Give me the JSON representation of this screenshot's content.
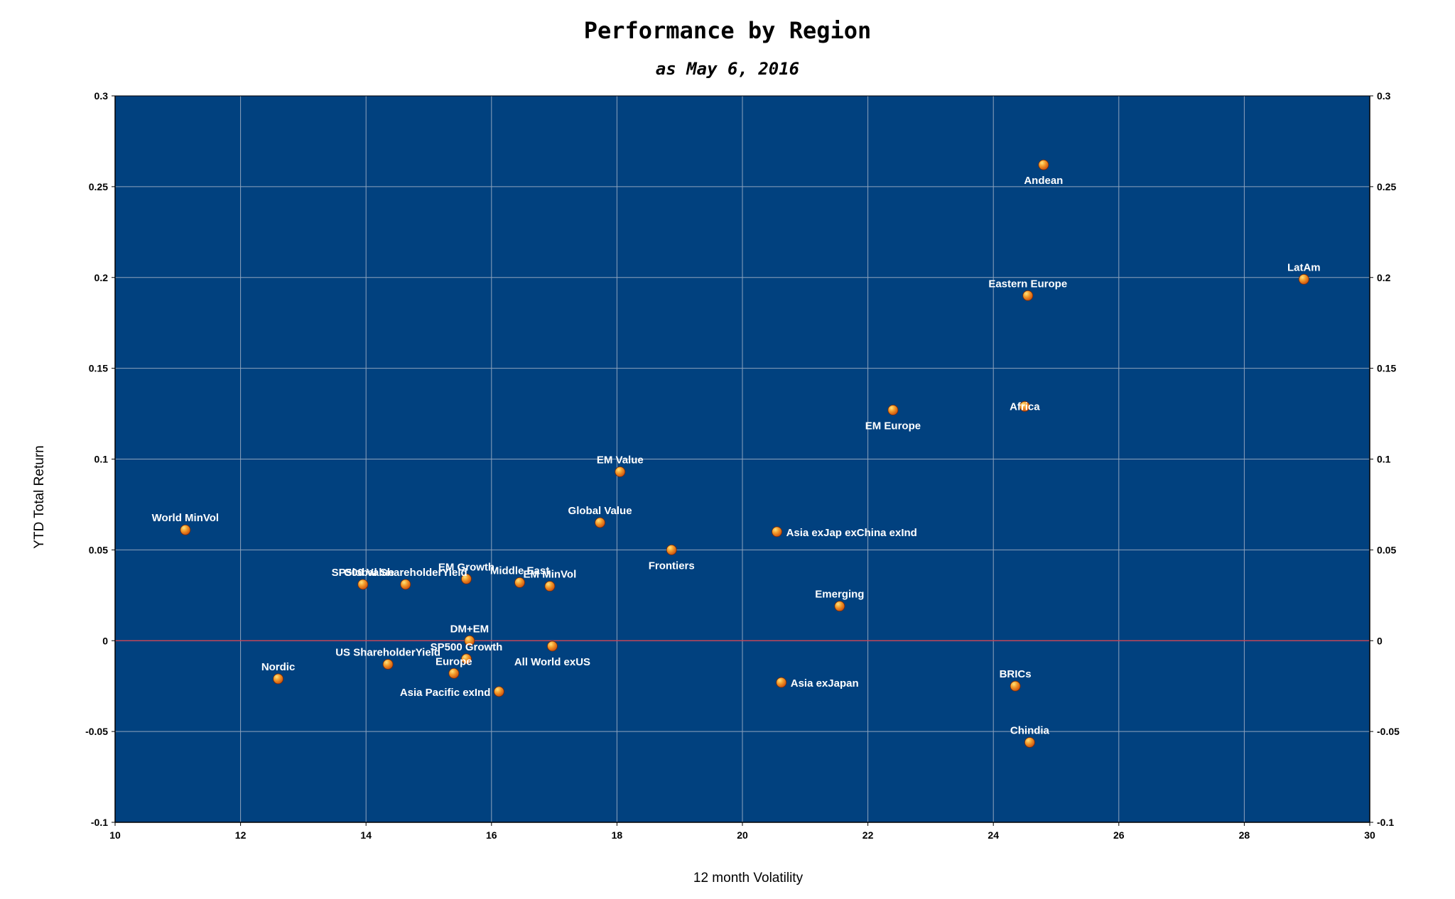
{
  "chart_data": {
    "type": "scatter",
    "title": "Performance by Region",
    "subtitle": "as May 6, 2016",
    "xlabel": "12 month Volatility",
    "ylabel": "YTD Total Return",
    "xlim": [
      10,
      30
    ],
    "ylim": [
      -0.1,
      0.3
    ],
    "xticks": [
      10,
      12,
      14,
      16,
      18,
      20,
      22,
      24,
      26,
      28,
      30
    ],
    "yticks": [
      -0.1,
      -0.05,
      0,
      0.05,
      0.1,
      0.15,
      0.2,
      0.25,
      0.3
    ],
    "ytick_labels": [
      "-0.1",
      "-0.05",
      "0",
      "0.05",
      "0.1",
      "0.15",
      "0.2",
      "0.25",
      "0.3"
    ],
    "grid": true,
    "secondary_y_axis": true,
    "colors": {
      "plot_bg": "#01417f",
      "grid": "#8fa3bd",
      "zero_line": "#c0465a",
      "marker": "#f07c1c",
      "marker_highlight": "#ffe27a",
      "label": "#ffffff"
    },
    "points": [
      {
        "label": "Andean",
        "x": 24.8,
        "y": 0.262,
        "pos": "below"
      },
      {
        "label": "LatAm",
        "x": 28.95,
        "y": 0.199,
        "pos": "above"
      },
      {
        "label": "Eastern Europe",
        "x": 24.55,
        "y": 0.19,
        "pos": "above"
      },
      {
        "label": "Africa",
        "x": 24.5,
        "y": 0.129,
        "pos": "on"
      },
      {
        "label": "EM Europe",
        "x": 22.4,
        "y": 0.127,
        "pos": "below"
      },
      {
        "label": "EM Value",
        "x": 18.05,
        "y": 0.093,
        "pos": "above"
      },
      {
        "label": "Global Value",
        "x": 17.73,
        "y": 0.065,
        "pos": "above"
      },
      {
        "label": "World MinVol",
        "x": 11.12,
        "y": 0.061,
        "pos": "above"
      },
      {
        "label": "Asia exJap exChina exInd",
        "x": 20.55,
        "y": 0.06,
        "pos": "right"
      },
      {
        "label": "Frontiers",
        "x": 18.87,
        "y": 0.05,
        "pos": "below"
      },
      {
        "label": "EM Growth",
        "x": 15.6,
        "y": 0.034,
        "pos": "above"
      },
      {
        "label": "Middle East",
        "x": 16.45,
        "y": 0.032,
        "pos": "above"
      },
      {
        "label": "Global ShareholderYield",
        "x": 14.63,
        "y": 0.031,
        "pos": "above"
      },
      {
        "label": "SP500 Value",
        "x": 13.95,
        "y": 0.031,
        "pos": "above"
      },
      {
        "label": "EM MinVol",
        "x": 16.93,
        "y": 0.03,
        "pos": "above"
      },
      {
        "label": "Emerging",
        "x": 21.55,
        "y": 0.019,
        "pos": "above"
      },
      {
        "label": "DM+EM",
        "x": 15.65,
        "y": 0.0,
        "pos": "above"
      },
      {
        "label": "All World exUS",
        "x": 16.97,
        "y": -0.003,
        "pos": "below"
      },
      {
        "label": "SP500 Growth",
        "x": 15.6,
        "y": -0.01,
        "pos": "above"
      },
      {
        "label": "US ShareholderYield",
        "x": 14.35,
        "y": -0.013,
        "pos": "above"
      },
      {
        "label": "Europe",
        "x": 15.4,
        "y": -0.018,
        "pos": "above"
      },
      {
        "label": "Nordic",
        "x": 12.6,
        "y": -0.021,
        "pos": "above"
      },
      {
        "label": "Asia exJapan",
        "x": 20.62,
        "y": -0.023,
        "pos": "right"
      },
      {
        "label": "BRICs",
        "x": 24.35,
        "y": -0.025,
        "pos": "above"
      },
      {
        "label": "Asia Pacific exInd",
        "x": 16.12,
        "y": -0.028,
        "pos": "left"
      },
      {
        "label": "Chindia",
        "x": 24.58,
        "y": -0.056,
        "pos": "above"
      }
    ]
  }
}
